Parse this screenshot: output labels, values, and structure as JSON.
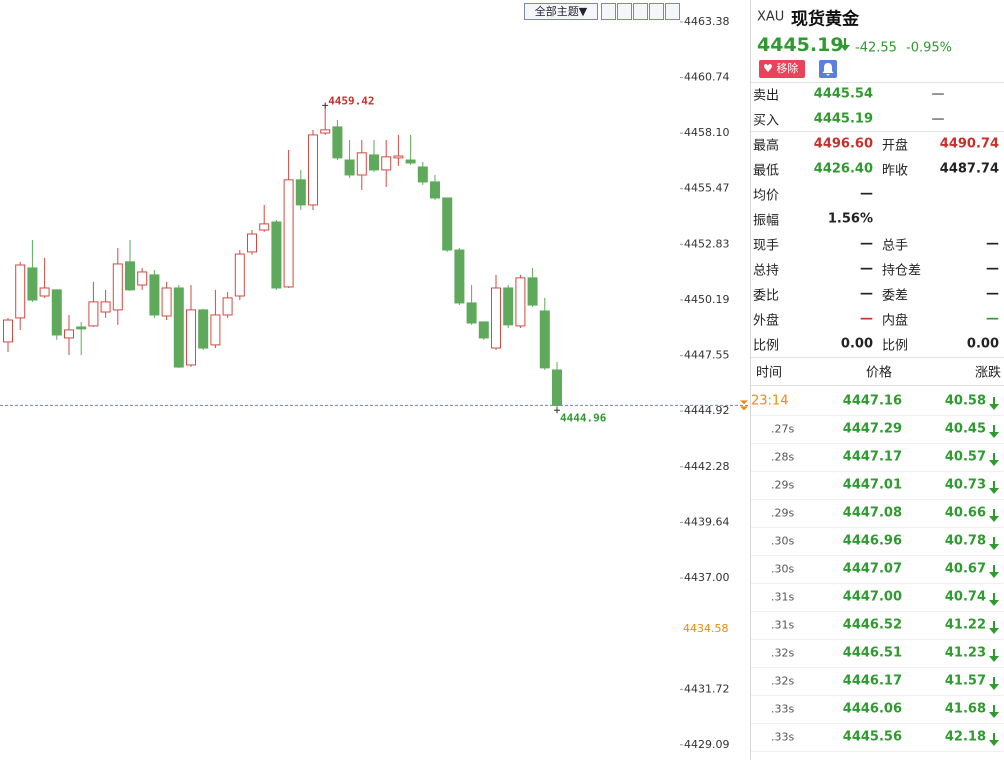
{
  "toolbar": {
    "theme_button": "全部主题▼"
  },
  "chart_data": {
    "type": "candlestick",
    "open": [
      4448.2,
      4449.34,
      4451.71,
      4450.38,
      4450.67,
      4448.39,
      4448.91,
      4448.96,
      4449.62,
      4449.72,
      4452.0,
      4450.9,
      4451.38,
      4449.43,
      4450.76,
      4447.11,
      4449.72,
      4448.06,
      4449.48,
      4450.38,
      4452.47,
      4453.51,
      4453.89,
      4450.81,
      4455.89,
      4454.7,
      4458.11,
      4458.4,
      4456.83,
      4456.12,
      4457.07,
      4456.36,
      4456.93,
      4456.83,
      4456.5,
      4455.79,
      4455.03,
      4452.56,
      4450.05,
      4449.15,
      4447.91,
      4450.76,
      4448.96,
      4451.24,
      4449.67,
      4446.87
    ],
    "high": [
      4449.34,
      4452.0,
      4453.04,
      4452.18,
      4450.7,
      4449.48,
      4449.15,
      4451.05,
      4450.67,
      4452.66,
      4453.04,
      4451.71,
      4451.61,
      4451.05,
      4450.9,
      4450.9,
      4449.77,
      4450.67,
      4450.57,
      4452.56,
      4453.51,
      4454.7,
      4453.99,
      4457.31,
      4456.36,
      4458.26,
      4459.42,
      4458.73,
      4457.78,
      4457.78,
      4457.78,
      4457.78,
      4458.02,
      4458.02,
      4456.74,
      4456.12,
      4455.03,
      4452.66,
      4450.9,
      4449.15,
      4451.38,
      4450.9,
      4451.38,
      4451.71,
      4450.29,
      4447.25
    ],
    "low": [
      4447.73,
      4448.77,
      4450.1,
      4450.29,
      4448.3,
      4447.58,
      4447.58,
      4448.91,
      4449.34,
      4449.01,
      4450.62,
      4450.67,
      4449.34,
      4449.24,
      4446.97,
      4447.01,
      4447.82,
      4447.91,
      4449.34,
      4450.19,
      4452.33,
      4453.42,
      4450.67,
      4450.76,
      4454.46,
      4454.46,
      4458.02,
      4456.83,
      4455.98,
      4455.41,
      4456.26,
      4455.55,
      4456.55,
      4456.6,
      4455.65,
      4454.94,
      4452.47,
      4449.95,
      4449.01,
      4448.3,
      4447.82,
      4448.86,
      4448.86,
      4449.86,
      4446.87,
      4444.96
    ],
    "close": [
      4449.24,
      4451.85,
      4450.19,
      4450.76,
      4448.53,
      4448.77,
      4448.82,
      4450.1,
      4450.1,
      4451.9,
      4450.67,
      4451.52,
      4449.48,
      4450.76,
      4447.01,
      4449.72,
      4447.91,
      4449.48,
      4450.29,
      4452.37,
      4453.32,
      4453.8,
      4450.76,
      4455.89,
      4454.7,
      4458.02,
      4458.26,
      4456.93,
      4456.12,
      4457.17,
      4456.36,
      4456.98,
      4457.02,
      4456.69,
      4455.79,
      4455.03,
      4452.56,
      4450.05,
      4449.1,
      4448.39,
      4450.76,
      4449.01,
      4451.24,
      4449.95,
      4446.97,
      4445.19
    ],
    "up_color": "#d24a43",
    "down_color": "#5ea95b",
    "ylim": [
      4428.37,
      4464.42
    ],
    "yticks": [
      4463.38,
      4460.74,
      {
        "value": 4458.1,
        "label": "4458.10"
      },
      4455.47,
      4452.83,
      4450.19,
      4447.55,
      4444.92,
      4442.28,
      4439.64,
      {
        "value": 4437,
        "label": "4437.00"
      },
      4431.72,
      4429.09
    ],
    "alert_price": 4434.58,
    "alert_color": "#f08c00",
    "last_line_color": "#3a9fbf"
  },
  "quote_panel": {
    "symbol": "XAU",
    "name": "现货黄金",
    "price": "4445.19",
    "change": "-42.55",
    "change_pct": "-0.95%",
    "remove_button": "移除",
    "rows": [
      {
        "label": "卖出",
        "value": "4445.54",
        "color": "green",
        "extra": "—"
      },
      {
        "label": "买入",
        "value": "4445.19",
        "color": "green",
        "extra": "—"
      },
      {
        "label": "最高",
        "value": "4496.60",
        "color": "red",
        "label2": "开盘",
        "value2": "4490.74",
        "color2": "red"
      },
      {
        "label": "最低",
        "value": "4426.40",
        "color": "green",
        "label2": "昨收",
        "value2": "4487.74",
        "color2": "dark"
      },
      {
        "label": "均价",
        "value": "—",
        "color": "dark"
      },
      {
        "label": "振幅",
        "value": "1.56%",
        "color": "dark"
      },
      {
        "label": "现手",
        "value": "—",
        "color": "dark",
        "label2": "总手",
        "value2": "—",
        "color2": "dark"
      },
      {
        "label": "总持",
        "value": "—",
        "color": "dark",
        "label2": "持仓差",
        "value2": "—",
        "color2": "dark"
      },
      {
        "label": "委比",
        "value": "—",
        "color": "dark",
        "label2": "委差",
        "value2": "—",
        "color2": "dark"
      },
      {
        "label": "外盘",
        "value": "—",
        "color": "red",
        "label2": "内盘",
        "value2": "—",
        "color2": "green"
      },
      {
        "label": "比例",
        "value": "0.00",
        "color": "dark",
        "label2": "比例",
        "value2": "0.00",
        "color2": "dark"
      }
    ],
    "trades": {
      "headers": [
        "时间",
        "价格",
        "涨跌"
      ],
      "rows": [
        [
          "23:14",
          "4447.16",
          "40.58"
        ],
        [
          ".27s",
          "4447.29",
          "40.45"
        ],
        [
          ".28s",
          "4447.17",
          "40.57"
        ],
        [
          ".29s",
          "4447.01",
          "40.73"
        ],
        [
          ".29s",
          "4447.08",
          "40.66"
        ],
        [
          ".30s",
          "4446.96",
          "40.78"
        ],
        [
          ".30s",
          "4447.07",
          "40.67"
        ],
        [
          ".31s",
          "4447.00",
          "40.74"
        ],
        [
          ".31s",
          "4446.52",
          "41.22"
        ],
        [
          ".32s",
          "4446.51",
          "41.23"
        ],
        [
          ".32s",
          "4446.17",
          "41.57"
        ],
        [
          ".33s",
          "4446.06",
          "41.68"
        ],
        [
          ".33s",
          "4445.56",
          "42.18"
        ]
      ]
    }
  }
}
